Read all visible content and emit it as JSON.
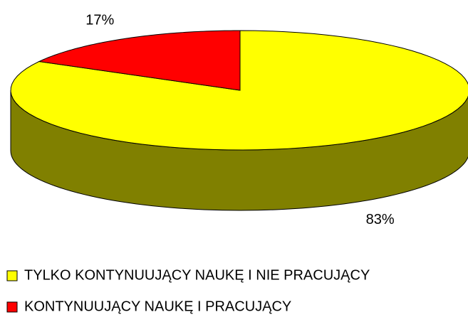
{
  "chart_data": {
    "type": "pie",
    "categories": [
      "TYLKO KONTYNUUJĄCY NAUKĘ I NIE PRACUJĄCY",
      "KONTYNUUJĄCY NAUKĘ I PRACUJĄCY"
    ],
    "values": [
      83,
      17
    ],
    "value_labels": [
      "83%",
      "17%"
    ],
    "colors": [
      "#ffff00",
      "#ff0000"
    ],
    "legend": "bottom"
  }
}
